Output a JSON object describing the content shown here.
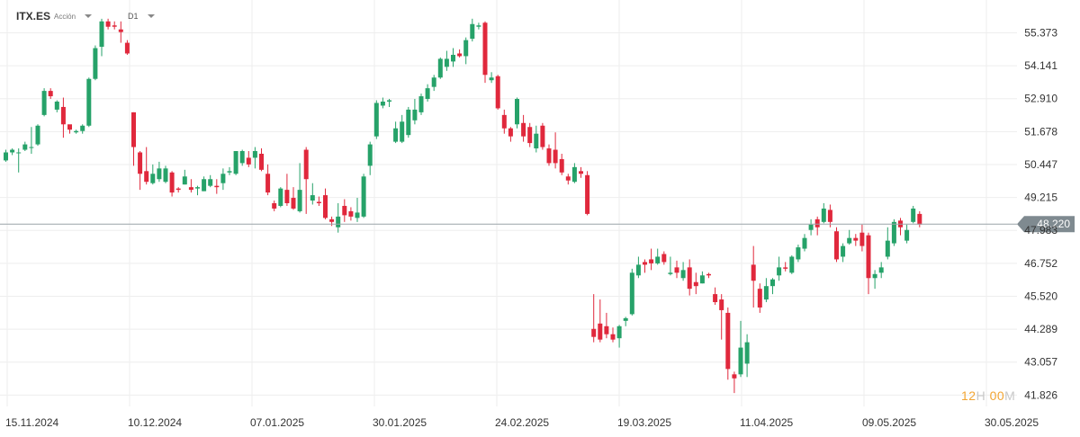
{
  "toolbar": {
    "symbol": "ITX.ES",
    "type_label": "Acción",
    "timeframe": "D1"
  },
  "timer": {
    "hours": "12",
    "hours_unit": "H",
    "minutes": "00",
    "minutes_unit": "M"
  },
  "colors": {
    "up": "#26a269",
    "down": "#e0283c",
    "grid": "#eeeeee",
    "current_line": "#9aa3a8",
    "current_tag": "#7f8a90"
  },
  "chart_data": {
    "type": "candlestick",
    "symbol": "ITX.ES",
    "timeframe": "D1",
    "y_ticks": [
      "55.373",
      "54.141",
      "52.910",
      "51.678",
      "50.447",
      "49.215",
      "47.983",
      "46.752",
      "45.520",
      "44.289",
      "43.057",
      "41.826"
    ],
    "ylim": [
      41.4,
      56.6
    ],
    "x_ticks": [
      "15.11.2024",
      "10.12.2024",
      "07.01.2025",
      "30.01.2025",
      "24.02.2025",
      "19.03.2025",
      "11.04.2025",
      "09.05.2025",
      "30.05.2025"
    ],
    "current_price": "48.220",
    "grid": true,
    "candles": [
      [
        50.6,
        50.9,
        50.55,
        51.0
      ],
      [
        50.9,
        51.0,
        50.8,
        51.05
      ],
      [
        50.9,
        50.9,
        50.15,
        51.05
      ],
      [
        51.0,
        51.2,
        50.95,
        51.3
      ],
      [
        51.1,
        51.1,
        50.85,
        51.85
      ],
      [
        51.2,
        51.9,
        51.15,
        51.95
      ],
      [
        52.3,
        53.2,
        52.25,
        53.3
      ],
      [
        53.2,
        53.0,
        52.9,
        53.3
      ],
      [
        52.5,
        52.8,
        52.4,
        52.85
      ],
      [
        52.6,
        51.95,
        51.45,
        52.95
      ],
      [
        51.95,
        51.75,
        51.6,
        51.9
      ],
      [
        51.65,
        51.7,
        51.6,
        51.75
      ],
      [
        51.7,
        51.9,
        51.6,
        51.95
      ],
      [
        51.9,
        53.65,
        51.85,
        53.7
      ],
      [
        53.65,
        54.8,
        53.6,
        54.9
      ],
      [
        54.85,
        55.8,
        54.5,
        55.9
      ],
      [
        55.8,
        55.6,
        55.5,
        55.9
      ],
      [
        55.65,
        55.6,
        55.5,
        55.8
      ],
      [
        55.5,
        55.4,
        55.0,
        55.8
      ],
      [
        55.0,
        54.6,
        54.55,
        55.1
      ],
      [
        52.4,
        51.1,
        50.4,
        52.4
      ],
      [
        50.9,
        50.1,
        49.5,
        50.95
      ],
      [
        50.2,
        49.8,
        49.7,
        51.1
      ],
      [
        49.75,
        50.1,
        49.7,
        50.45
      ],
      [
        49.9,
        50.3,
        49.8,
        50.55
      ],
      [
        49.8,
        50.3,
        49.75,
        50.4
      ],
      [
        50.15,
        49.4,
        49.25,
        50.2
      ],
      [
        49.55,
        49.5,
        49.4,
        49.6
      ],
      [
        49.7,
        50.0,
        49.7,
        50.25
      ],
      [
        49.6,
        49.5,
        49.4,
        49.9
      ],
      [
        49.55,
        49.6,
        49.3,
        49.65
      ],
      [
        49.45,
        49.9,
        49.45,
        50.0
      ],
      [
        49.65,
        49.9,
        49.6,
        50.05
      ],
      [
        49.65,
        49.6,
        49.35,
        49.9
      ],
      [
        49.75,
        50.1,
        49.5,
        50.3
      ],
      [
        50.15,
        50.2,
        50.05,
        50.35
      ],
      [
        50.1,
        50.95,
        50.05,
        50.95
      ],
      [
        50.5,
        50.95,
        50.4,
        51.0
      ],
      [
        50.7,
        50.45,
        50.35,
        50.95
      ],
      [
        50.7,
        50.95,
        50.3,
        51.1
      ],
      [
        50.85,
        50.25,
        50.2,
        51.05
      ],
      [
        50.1,
        49.4,
        49.3,
        50.45
      ],
      [
        49.0,
        48.8,
        48.7,
        49.1
      ],
      [
        48.9,
        49.55,
        48.85,
        49.6
      ],
      [
        49.5,
        49.0,
        48.9,
        50.1
      ],
      [
        49.2,
        48.8,
        48.75,
        49.6
      ],
      [
        48.7,
        49.5,
        48.65,
        50.5
      ],
      [
        51.0,
        49.9,
        48.6,
        51.1
      ],
      [
        49.1,
        49.3,
        48.95,
        49.75
      ],
      [
        49.05,
        49.0,
        48.9,
        49.25
      ],
      [
        49.3,
        48.45,
        48.4,
        49.55
      ],
      [
        48.4,
        48.3,
        48.15,
        48.5
      ],
      [
        48.1,
        48.5,
        47.9,
        49.0
      ],
      [
        48.9,
        48.55,
        48.3,
        49.15
      ],
      [
        48.7,
        48.5,
        48.35,
        48.85
      ],
      [
        48.45,
        48.65,
        48.3,
        49.2
      ],
      [
        48.5,
        50.0,
        48.45,
        50.1
      ],
      [
        50.4,
        51.2,
        50.05,
        51.3
      ],
      [
        51.5,
        52.75,
        51.4,
        52.85
      ],
      [
        52.65,
        52.8,
        52.55,
        52.95
      ],
      [
        52.8,
        52.85,
        52.6,
        52.9
      ],
      [
        51.3,
        51.8,
        51.25,
        52.05
      ],
      [
        51.3,
        52.05,
        51.25,
        52.3
      ],
      [
        51.55,
        52.5,
        51.45,
        52.6
      ],
      [
        52.1,
        52.5,
        51.95,
        52.9
      ],
      [
        52.4,
        53.0,
        52.3,
        53.1
      ],
      [
        52.9,
        53.3,
        52.8,
        53.45
      ],
      [
        53.35,
        53.7,
        53.2,
        53.8
      ],
      [
        53.7,
        54.4,
        53.65,
        54.45
      ],
      [
        54.1,
        54.4,
        53.95,
        54.7
      ],
      [
        54.3,
        54.55,
        54.1,
        54.8
      ],
      [
        54.6,
        54.5,
        54.45,
        54.75
      ],
      [
        54.5,
        55.1,
        54.2,
        55.2
      ],
      [
        55.15,
        55.7,
        55.05,
        55.9
      ],
      [
        55.6,
        55.65,
        55.5,
        55.75
      ],
      [
        55.75,
        53.8,
        53.5,
        55.8
      ],
      [
        53.6,
        53.7,
        53.5,
        53.9
      ],
      [
        53.75,
        52.55,
        52.5,
        53.8
      ],
      [
        52.3,
        51.8,
        51.6,
        52.5
      ],
      [
        51.8,
        51.5,
        51.3,
        51.85
      ],
      [
        51.95,
        52.9,
        51.8,
        52.95
      ],
      [
        52.0,
        51.5,
        51.3,
        52.3
      ],
      [
        51.85,
        51.25,
        51.1,
        52.0
      ],
      [
        51.05,
        51.6,
        50.9,
        51.9
      ],
      [
        51.9,
        51.1,
        51.0,
        52.0
      ],
      [
        51.05,
        50.5,
        50.4,
        51.2
      ],
      [
        51.0,
        50.5,
        50.3,
        51.65
      ],
      [
        50.65,
        50.15,
        50.05,
        50.85
      ],
      [
        50.0,
        49.85,
        49.7,
        50.1
      ],
      [
        49.8,
        50.35,
        49.75,
        50.5
      ],
      [
        50.2,
        50.1,
        49.95,
        50.35
      ],
      [
        50.05,
        48.6,
        48.55,
        50.2
      ],
      [
        44.3,
        44.0,
        43.8,
        45.6
      ],
      [
        44.5,
        43.9,
        43.8,
        45.4
      ],
      [
        44.4,
        44.1,
        43.95,
        44.9
      ],
      [
        44.1,
        43.9,
        43.8,
        44.35
      ],
      [
        43.95,
        44.4,
        43.6,
        44.45
      ],
      [
        44.6,
        44.7,
        44.4,
        44.75
      ],
      [
        44.85,
        46.4,
        44.8,
        46.55
      ],
      [
        46.3,
        46.7,
        46.2,
        47.0
      ],
      [
        46.8,
        46.7,
        46.4,
        46.9
      ],
      [
        46.9,
        46.75,
        46.5,
        47.3
      ],
      [
        46.75,
        47.0,
        46.7,
        47.3
      ],
      [
        47.1,
        46.8,
        46.7,
        47.2
      ],
      [
        46.35,
        46.4,
        46.3,
        47.0
      ],
      [
        46.6,
        46.4,
        46.2,
        46.85
      ],
      [
        46.2,
        46.5,
        46.1,
        46.8
      ],
      [
        46.6,
        45.8,
        45.55,
        46.9
      ],
      [
        46.05,
        45.9,
        45.6,
        46.4
      ],
      [
        46.0,
        46.3,
        46.0,
        46.45
      ],
      [
        46.35,
        46.3,
        46.2,
        46.4
      ],
      [
        45.6,
        45.3,
        45.2,
        45.85
      ],
      [
        45.4,
        45.0,
        43.9,
        45.6
      ],
      [
        44.9,
        42.8,
        42.4,
        45.1
      ],
      [
        42.6,
        42.45,
        41.9,
        42.7
      ],
      [
        42.6,
        43.6,
        42.5,
        44.6
      ],
      [
        43.0,
        43.8,
        42.5,
        44.1
      ],
      [
        46.7,
        46.1,
        45.1,
        47.4
      ],
      [
        45.8,
        45.1,
        44.9,
        46.0
      ],
      [
        45.4,
        45.9,
        45.3,
        46.2
      ],
      [
        45.9,
        46.15,
        45.6,
        46.2
      ],
      [
        46.3,
        46.6,
        46.1,
        47.0
      ],
      [
        46.6,
        46.55,
        46.45,
        46.8
      ],
      [
        46.4,
        47.0,
        46.35,
        47.05
      ],
      [
        46.9,
        47.35,
        46.8,
        47.45
      ],
      [
        47.3,
        47.7,
        47.2,
        47.85
      ],
      [
        48.0,
        48.2,
        47.8,
        48.4
      ],
      [
        48.4,
        48.1,
        47.8,
        48.5
      ],
      [
        48.3,
        48.8,
        48.25,
        49.0
      ],
      [
        48.75,
        48.3,
        48.1,
        48.95
      ],
      [
        47.95,
        46.9,
        46.8,
        48.1
      ],
      [
        47.0,
        47.4,
        46.8,
        47.5
      ],
      [
        47.5,
        47.7,
        47.45,
        48.0
      ],
      [
        47.7,
        47.6,
        47.4,
        47.85
      ],
      [
        47.9,
        47.4,
        47.2,
        48.2
      ],
      [
        47.8,
        46.2,
        45.6,
        47.9
      ],
      [
        46.2,
        46.35,
        45.8,
        46.5
      ],
      [
        46.4,
        46.6,
        46.2,
        46.8
      ],
      [
        47.0,
        47.6,
        46.9,
        48.1
      ],
      [
        47.5,
        48.3,
        47.4,
        48.4
      ],
      [
        48.35,
        48.1,
        47.8,
        48.45
      ],
      [
        47.6,
        48.0,
        47.5,
        48.2
      ],
      [
        48.3,
        48.8,
        48.25,
        48.9
      ],
      [
        48.6,
        48.2,
        48.1,
        48.7
      ]
    ]
  }
}
